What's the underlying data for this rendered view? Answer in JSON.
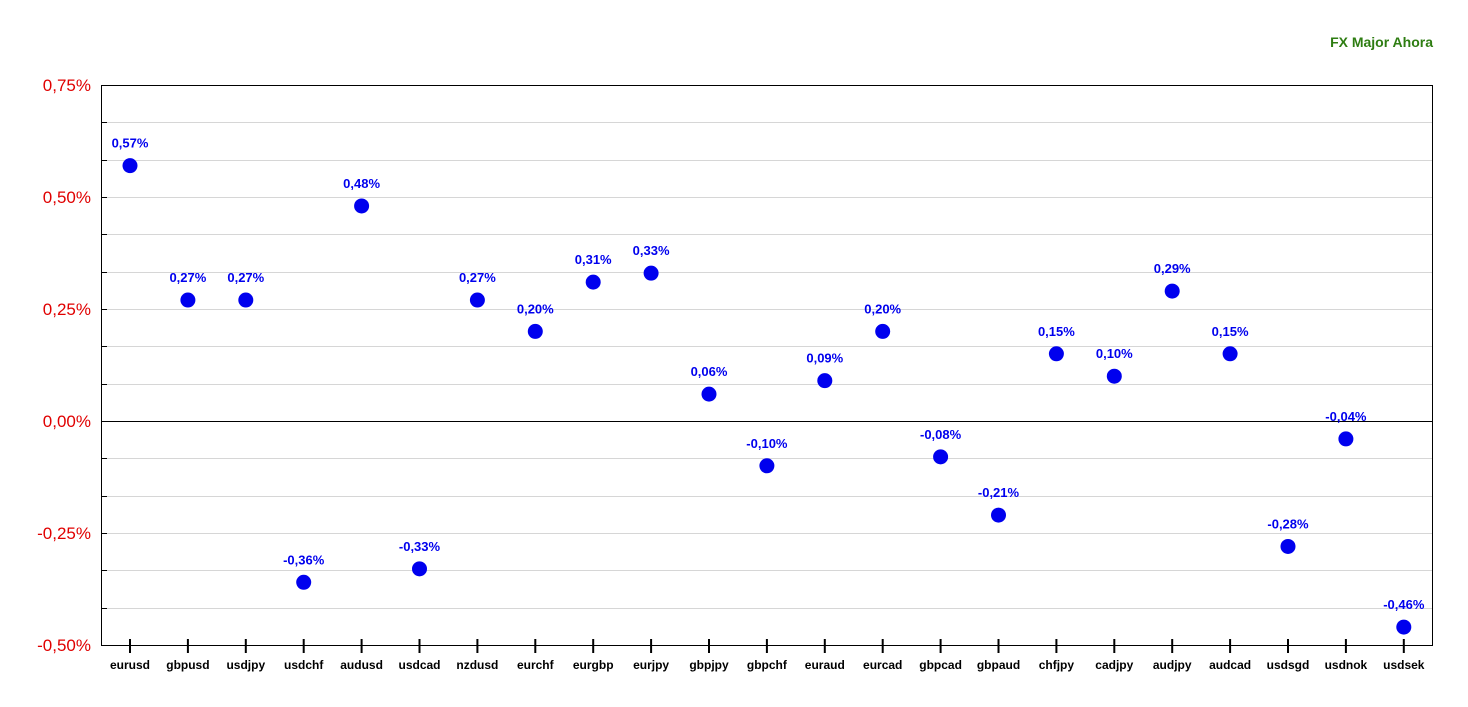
{
  "colors": {
    "title": "#2e7d12",
    "y_tick": "#e00000",
    "marker": "#0000ee",
    "data_label": "#0000ee",
    "grid": "#d6d6d6",
    "axis": "#000000"
  },
  "chart_data": {
    "type": "scatter",
    "title": "FX Major Ahora",
    "legend": "none",
    "grid": true,
    "ylim": [
      -0.5,
      0.75
    ],
    "y_ticks": [
      0.75,
      0.5,
      0.25,
      0.0,
      -0.25,
      -0.5
    ],
    "y_tick_labels": [
      "0,75%",
      "0,50%",
      "0,25%",
      "0,00%",
      "-0,25%",
      "-0,50%"
    ],
    "categories": [
      "eurusd",
      "gbpusd",
      "usdjpy",
      "usdchf",
      "audusd",
      "usdcad",
      "nzdusd",
      "eurchf",
      "eurgbp",
      "eurjpy",
      "gbpjpy",
      "gbpchf",
      "euraud",
      "eurcad",
      "gbpcad",
      "gbpaud",
      "chfjpy",
      "cadjpy",
      "audjpy",
      "audcad",
      "usdsgd",
      "usdnok",
      "usdsek"
    ],
    "values": [
      0.57,
      0.27,
      0.27,
      -0.36,
      0.48,
      -0.33,
      0.27,
      0.2,
      0.31,
      0.33,
      0.06,
      -0.1,
      0.09,
      0.2,
      -0.08,
      -0.21,
      0.15,
      0.1,
      0.29,
      0.15,
      -0.28,
      -0.04,
      -0.46
    ],
    "data_labels": [
      "0,57%",
      "0,27%",
      "0,27%",
      "-0,36%",
      "0,48%",
      "-0,33%",
      "0,27%",
      "0,20%",
      "0,31%",
      "0,33%",
      "0,06%",
      "-0,10%",
      "0,09%",
      "0,20%",
      "-0,08%",
      "-0,21%",
      "0,15%",
      "0,10%",
      "0,29%",
      "0,15%",
      "-0,28%",
      "-0,04%",
      "-0,46%"
    ]
  }
}
